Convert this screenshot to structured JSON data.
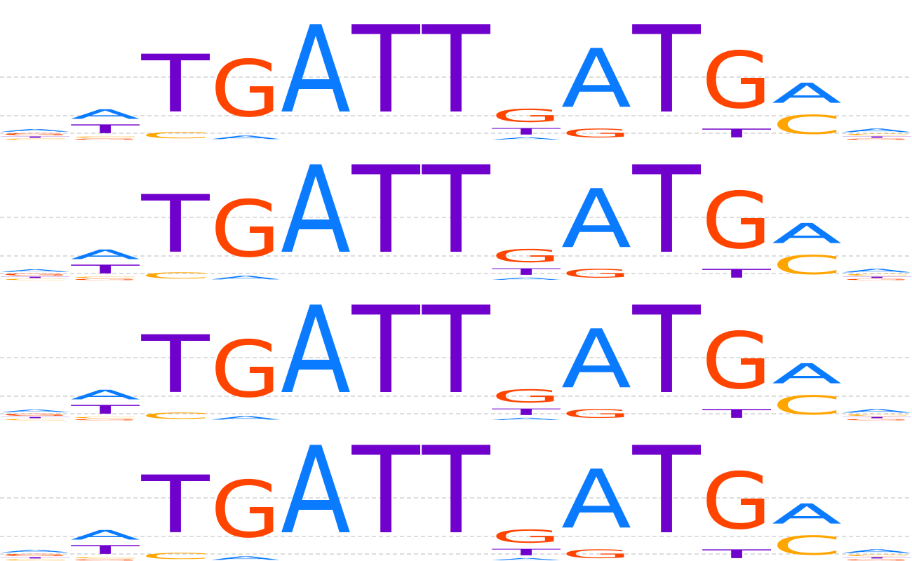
{
  "colors": {
    "A": "#0a7bff",
    "C": "#ffa500",
    "G": "#ff4400",
    "T": "#7000cc"
  },
  "chart_data": {
    "type": "sequence-logo",
    "panel_count": 4,
    "ylim": [
      0,
      2
    ],
    "grid": true,
    "grid_lines": [
      0.1,
      0.35,
      0.9
    ],
    "positions": [
      [
        {
          "letter": "A",
          "height": 0.06
        },
        {
          "letter": "G",
          "height": 0.05
        },
        {
          "letter": "C",
          "height": 0.03
        },
        {
          "letter": "T",
          "height": 0.03
        }
      ],
      [
        {
          "letter": "A",
          "height": 0.22
        },
        {
          "letter": "T",
          "height": 0.2
        },
        {
          "letter": "G",
          "height": 0.03
        },
        {
          "letter": "C",
          "height": 0.03
        }
      ],
      [
        {
          "letter": "T",
          "height": 1.32
        },
        {
          "letter": "C",
          "height": 0.14
        }
      ],
      [
        {
          "letter": "G",
          "height": 1.3
        },
        {
          "letter": "A",
          "height": 0.08
        }
      ],
      [
        {
          "letter": "A",
          "height": 2.0
        }
      ],
      [
        {
          "letter": "T",
          "height": 2.0
        }
      ],
      [
        {
          "letter": "T",
          "height": 2.0
        }
      ],
      [
        {
          "letter": "G",
          "height": 0.3
        },
        {
          "letter": "T",
          "height": 0.15
        },
        {
          "letter": "A",
          "height": 0.05
        }
      ],
      [
        {
          "letter": "A",
          "height": 1.35
        },
        {
          "letter": "G",
          "height": 0.2
        }
      ],
      [
        {
          "letter": "T",
          "height": 2.0
        }
      ],
      [
        {
          "letter": "G",
          "height": 1.3
        },
        {
          "letter": "T",
          "height": 0.2
        }
      ],
      [
        {
          "letter": "C",
          "height": 0.44
        },
        {
          "letter": "A",
          "height": 0.46
        }
      ],
      [
        {
          "letter": "A",
          "height": 0.08
        },
        {
          "letter": "C",
          "height": 0.04
        },
        {
          "letter": "G",
          "height": 0.03
        },
        {
          "letter": "T",
          "height": 0.03
        }
      ]
    ]
  }
}
